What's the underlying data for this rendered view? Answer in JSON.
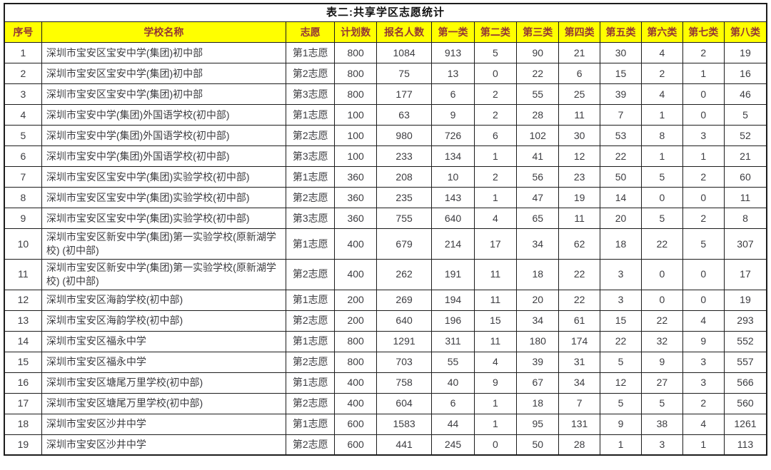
{
  "title": "表二:共享学区志愿统计",
  "columns": [
    "序号",
    "学校名称",
    "志愿",
    "计划数",
    "报名人数",
    "第一类",
    "第二类",
    "第三类",
    "第四类",
    "第五类",
    "第六类",
    "第七类",
    "第八类"
  ],
  "colors": {
    "header_bg": "#ffff00",
    "header_text": "#943634",
    "body_text": "#3c3c40",
    "border": "#1c1c1c",
    "title_text": "#111111"
  },
  "rows": [
    [
      "1",
      "深圳市宝安区宝安中学(集团)初中部",
      "第1志愿",
      "800",
      "1084",
      "913",
      "5",
      "90",
      "21",
      "30",
      "4",
      "2",
      "19"
    ],
    [
      "2",
      "深圳市宝安区宝安中学(集团)初中部",
      "第2志愿",
      "800",
      "75",
      "13",
      "0",
      "22",
      "6",
      "15",
      "2",
      "1",
      "16"
    ],
    [
      "3",
      "深圳市宝安区宝安中学(集团)初中部",
      "第3志愿",
      "800",
      "177",
      "6",
      "2",
      "55",
      "25",
      "39",
      "4",
      "0",
      "46"
    ],
    [
      "4",
      "深圳市宝安中学(集团)外国语学校(初中部)",
      "第1志愿",
      "100",
      "63",
      "9",
      "2",
      "28",
      "11",
      "7",
      "1",
      "0",
      "5"
    ],
    [
      "5",
      "深圳市宝安中学(集团)外国语学校(初中部)",
      "第2志愿",
      "100",
      "980",
      "726",
      "6",
      "102",
      "30",
      "53",
      "8",
      "3",
      "52"
    ],
    [
      "6",
      "深圳市宝安中学(集团)外国语学校(初中部)",
      "第3志愿",
      "100",
      "233",
      "134",
      "1",
      "41",
      "12",
      "22",
      "1",
      "1",
      "21"
    ],
    [
      "7",
      "深圳市宝安区宝安中学(集团)实验学校(初中部)",
      "第1志愿",
      "360",
      "208",
      "10",
      "2",
      "56",
      "23",
      "50",
      "5",
      "2",
      "60"
    ],
    [
      "8",
      "深圳市宝安区宝安中学(集团)实验学校(初中部)",
      "第2志愿",
      "360",
      "235",
      "143",
      "1",
      "47",
      "19",
      "14",
      "0",
      "0",
      "11"
    ],
    [
      "9",
      "深圳市宝安区宝安中学(集团)实验学校(初中部)",
      "第3志愿",
      "360",
      "755",
      "640",
      "4",
      "65",
      "11",
      "20",
      "5",
      "2",
      "8"
    ],
    [
      "10",
      "深圳市宝安区新安中学(集团)第一实验学校(原新湖学校) (初中部)",
      "第1志愿",
      "400",
      "679",
      "214",
      "17",
      "34",
      "62",
      "18",
      "22",
      "5",
      "307"
    ],
    [
      "11",
      "深圳市宝安区新安中学(集团)第一实验学校(原新湖学校) (初中部)",
      "第2志愿",
      "400",
      "262",
      "191",
      "11",
      "18",
      "22",
      "3",
      "0",
      "0",
      "17"
    ],
    [
      "12",
      "深圳市宝安区海韵学校(初中部)",
      "第1志愿",
      "200",
      "269",
      "194",
      "11",
      "20",
      "22",
      "3",
      "0",
      "0",
      "19"
    ],
    [
      "13",
      "深圳市宝安区海韵学校(初中部)",
      "第2志愿",
      "200",
      "640",
      "196",
      "15",
      "34",
      "61",
      "15",
      "22",
      "4",
      "293"
    ],
    [
      "14",
      "深圳市宝安区福永中学",
      "第1志愿",
      "800",
      "1291",
      "311",
      "11",
      "180",
      "174",
      "22",
      "32",
      "9",
      "552"
    ],
    [
      "15",
      "深圳市宝安区福永中学",
      "第2志愿",
      "800",
      "703",
      "55",
      "4",
      "39",
      "31",
      "5",
      "9",
      "3",
      "557"
    ],
    [
      "16",
      "深圳市宝安区塘尾万里学校(初中部)",
      "第1志愿",
      "400",
      "758",
      "40",
      "9",
      "67",
      "34",
      "12",
      "27",
      "3",
      "566"
    ],
    [
      "17",
      "深圳市宝安区塘尾万里学校(初中部)",
      "第2志愿",
      "400",
      "604",
      "6",
      "1",
      "18",
      "7",
      "5",
      "5",
      "2",
      "560"
    ],
    [
      "18",
      "深圳市宝安区沙井中学",
      "第1志愿",
      "600",
      "1583",
      "44",
      "1",
      "95",
      "131",
      "9",
      "38",
      "4",
      "1261"
    ],
    [
      "19",
      "深圳市宝安区沙井中学",
      "第2志愿",
      "600",
      "441",
      "245",
      "0",
      "50",
      "28",
      "1",
      "3",
      "1",
      "113"
    ]
  ]
}
